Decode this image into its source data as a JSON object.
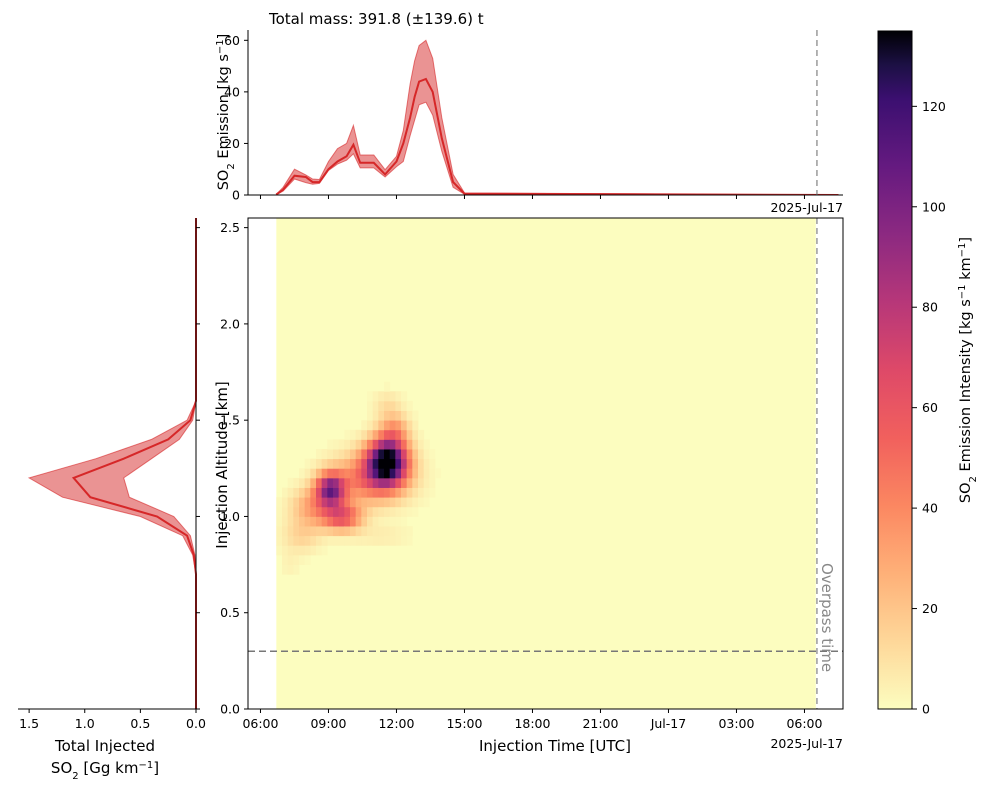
{
  "chart_data": [
    {
      "id": "emission_timeseries",
      "type": "area",
      "title": "Total mass: 391.8 (±139.6) t",
      "ylabel_main": "SO",
      "ylabel_sub": "2",
      "ylabel_rest": " Emission [kg s",
      "ylabel_sup": "−1",
      "ylabel_end": "]",
      "x_unit": "hours since 2025-07-16 06:00 UTC",
      "xlim": [
        -0.55,
        25.7
      ],
      "ylim": [
        0,
        64
      ],
      "yticks": [
        0,
        20,
        40,
        60
      ],
      "xticks_hours": [
        0,
        3,
        6,
        9,
        12,
        15,
        18,
        21,
        24
      ],
      "date_label": "2025-Jul-17",
      "series": [
        {
          "name": "",
          "x": [
            0.7,
            1.0,
            1.5,
            2.0,
            2.3,
            2.6,
            3.0,
            3.4,
            3.8,
            4.1,
            4.4,
            4.7,
            5.0,
            5.5,
            6.0,
            6.3,
            6.6,
            6.8,
            7.0,
            7.3,
            7.6,
            8.0,
            8.5,
            9.0,
            25.5
          ],
          "y": [
            0.2,
            2,
            7.5,
            7,
            5,
            5,
            10,
            13,
            15,
            19.5,
            12.5,
            12.5,
            12.5,
            8,
            13,
            20,
            30,
            38,
            44,
            45,
            40,
            22,
            5,
            0.5,
            0
          ],
          "lower": [
            0.1,
            1.5,
            6.2,
            4.8,
            4.2,
            4.5,
            9.5,
            12,
            13.5,
            16,
            10.5,
            10.5,
            10.5,
            7,
            11,
            13,
            23,
            29,
            35,
            36,
            31,
            17,
            3,
            0.3,
            0
          ],
          "upper": [
            0.3,
            3,
            10,
            7.8,
            6.2,
            6,
            13,
            18,
            20,
            27,
            15.5,
            15.5,
            15.5,
            9.8,
            15,
            25,
            43,
            52,
            58,
            60,
            53,
            30,
            8,
            0.8,
            0
          ]
        }
      ],
      "color": "#d62728"
    },
    {
      "id": "emission_heatmap",
      "type": "heatmap",
      "xlabel": "Injection Time [UTC]",
      "ylabel": "Injection Altitude [km]",
      "xlim": [
        -0.55,
        25.7
      ],
      "ylim": [
        0,
        2.55
      ],
      "yticks": [
        "0.0",
        "0.5",
        "1.0",
        "1.5",
        "2.0",
        "2.5"
      ],
      "xtick_labels": [
        "06:00",
        "09:00",
        "12:00",
        "15:00",
        "18:00",
        "21:00",
        "Jul-17",
        "03:00",
        "06:00"
      ],
      "date_label": "2025-Jul-17",
      "data_x_range_hours": [
        0.7,
        24.5
      ],
      "cell_width_hours": 0.25,
      "cell_height_km": 0.05,
      "background_value": 0,
      "blobs": [
        {
          "t": 5.6,
          "z": 1.29,
          "st": 0.6,
          "sz": 0.08,
          "a": 135
        },
        {
          "t": 4.9,
          "z": 1.2,
          "st": 1.1,
          "sz": 0.09,
          "a": 50
        },
        {
          "t": 3.1,
          "z": 1.14,
          "st": 0.45,
          "sz": 0.06,
          "a": 95
        },
        {
          "t": 3.6,
          "z": 1.0,
          "st": 0.6,
          "sz": 0.05,
          "a": 60
        },
        {
          "t": 2.3,
          "z": 1.05,
          "st": 0.65,
          "sz": 0.07,
          "a": 30
        },
        {
          "t": 1.8,
          "z": 0.9,
          "st": 0.6,
          "sz": 0.06,
          "a": 14
        },
        {
          "t": 5.9,
          "z": 1.45,
          "st": 0.45,
          "sz": 0.06,
          "a": 30
        },
        {
          "t": 5.6,
          "z": 1.58,
          "st": 0.45,
          "sz": 0.05,
          "a": 10
        },
        {
          "t": 5.3,
          "z": 0.9,
          "st": 0.9,
          "sz": 0.04,
          "a": 6
        },
        {
          "t": 1.3,
          "z": 0.75,
          "st": 0.3,
          "sz": 0.05,
          "a": 4
        }
      ],
      "overpass_hour": 24.55,
      "overpass_label": "Overpass time",
      "horizontal_line_km": 0.3
    },
    {
      "id": "altitude_profile",
      "type": "area",
      "xlabel_line1": "Total Injected",
      "xlabel_line2_a": "SO",
      "xlabel_line2_sub": "2",
      "xlabel_line2_b": " [Gg km",
      "xlabel_line2_sup": "−1",
      "xlabel_line2_c": "]",
      "xlim": [
        1.6,
        0.0
      ],
      "xticks": [
        "1.5",
        "1.0",
        "0.5",
        "0.0"
      ],
      "ylim": [
        0,
        2.55
      ],
      "series": [
        {
          "name": "",
          "z": [
            0.0,
            0.7,
            0.8,
            0.9,
            1.0,
            1.1,
            1.2,
            1.3,
            1.4,
            1.5,
            1.6,
            2.55
          ],
          "x": [
            0.0,
            0.0,
            0.02,
            0.08,
            0.35,
            0.95,
            1.1,
            0.65,
            0.25,
            0.05,
            0.0,
            0.0
          ],
          "lower": [
            0.0,
            0.0,
            0.01,
            0.05,
            0.2,
            0.6,
            0.65,
            0.4,
            0.15,
            0.03,
            0.0,
            0.0
          ],
          "upper": [
            0.0,
            0.0,
            0.03,
            0.12,
            0.5,
            1.2,
            1.5,
            0.9,
            0.4,
            0.08,
            0.0,
            0.0
          ]
        }
      ],
      "color": "#d62728"
    },
    {
      "id": "colorbar",
      "type": "heatmap",
      "colormap": "magma_r",
      "label_a": "SO",
      "label_sub": "2",
      "label_b": " Emission Intensity [kg s",
      "label_sup1": "−1",
      "label_c": " km",
      "label_sup2": "−1",
      "label_d": "]",
      "range": [
        0,
        135
      ],
      "ticks": [
        0,
        20,
        40,
        60,
        80,
        100,
        120
      ]
    }
  ]
}
